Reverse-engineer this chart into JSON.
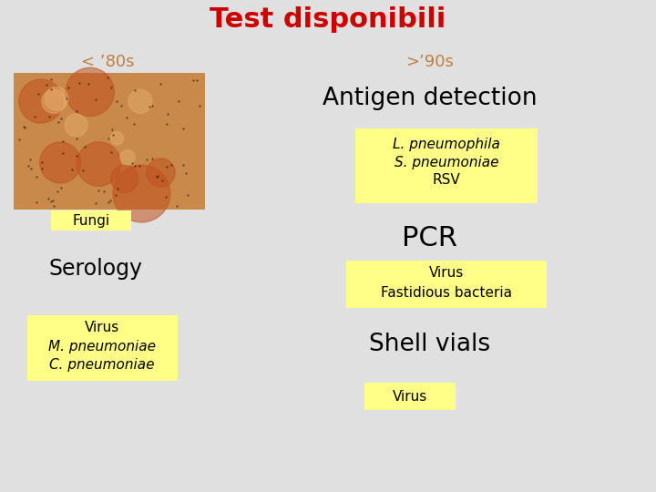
{
  "title": "Test disponibili",
  "title_color": "#cc0000",
  "title_fontsize": 22,
  "bg_color": "#e0e0e0",
  "left_panel_label": "< ’80s",
  "right_panel_label": ">’90s",
  "left_label_color": "#c08040",
  "right_label_color": "#c08040",
  "yellow_bg": "#ffff88",
  "panel_bg": "#e0e0e0",
  "img_base_color": "#c8894a",
  "img_spot_color": "#c05020",
  "img_light_color": "#e8b070"
}
